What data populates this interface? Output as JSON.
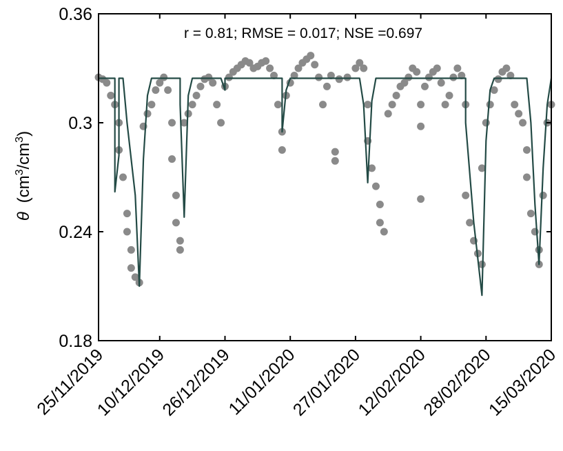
{
  "chart_data": {
    "type": "scatter",
    "title": "",
    "annotation": "r = 0.81; RMSE = 0.017; NSE =0.697",
    "ylabel": {
      "symbol": "θ",
      "text": "(cm",
      "sup1": "3",
      "mid": "/cm",
      "sup2": "3",
      "close": ")"
    },
    "xlabel": "",
    "ylim": [
      0.18,
      0.36
    ],
    "yticks": [
      0.18,
      0.24,
      0.3,
      0.36
    ],
    "ytick_labels": [
      "0.18",
      "0.24",
      "0.3",
      "0.36"
    ],
    "xlim": [
      "2019-11-25",
      "2020-03-15"
    ],
    "xticks": [
      "2019-11-25",
      "2019-12-10",
      "2019-12-26",
      "2020-01-11",
      "2020-01-27",
      "2020-02-12",
      "2020-02-28",
      "2020-03-15"
    ],
    "xtick_labels": [
      "25/11/2019",
      "10/12/2019",
      "26/12/2019",
      "11/01/2020",
      "27/01/2020",
      "12/02/2020",
      "28/02/2020",
      "15/03/2020"
    ],
    "grid": false,
    "colors": {
      "observed": "#8a8a8a",
      "simulated": "#234a45",
      "axis": "#000000"
    },
    "series": [
      {
        "kind": "scatter",
        "points": [
          [
            "2019-11-25",
            0.325
          ],
          [
            "2019-11-26",
            0.324
          ],
          [
            "2019-11-27",
            0.322
          ],
          [
            "2019-11-28",
            0.315
          ],
          [
            "2019-11-29",
            0.31
          ],
          [
            "2019-11-30",
            0.3
          ],
          [
            "2019-11-30",
            0.285
          ],
          [
            "2019-12-01",
            0.27
          ],
          [
            "2019-12-02",
            0.25
          ],
          [
            "2019-12-02",
            0.24
          ],
          [
            "2019-12-03",
            0.23
          ],
          [
            "2019-12-03",
            0.22
          ],
          [
            "2019-12-04",
            0.215
          ],
          [
            "2019-12-05",
            0.212
          ],
          [
            "2019-12-06",
            0.298
          ],
          [
            "2019-12-07",
            0.305
          ],
          [
            "2019-12-08",
            0.31
          ],
          [
            "2019-12-09",
            0.318
          ],
          [
            "2019-12-10",
            0.322
          ],
          [
            "2019-12-11",
            0.325
          ],
          [
            "2019-12-12",
            0.318
          ],
          [
            "2019-12-13",
            0.3
          ],
          [
            "2019-12-13",
            0.28
          ],
          [
            "2019-12-14",
            0.26
          ],
          [
            "2019-12-14",
            0.245
          ],
          [
            "2019-12-15",
            0.235
          ],
          [
            "2019-12-15",
            0.23
          ],
          [
            "2019-12-16",
            0.3
          ],
          [
            "2019-12-17",
            0.305
          ],
          [
            "2019-12-18",
            0.31
          ],
          [
            "2019-12-19",
            0.315
          ],
          [
            "2019-12-20",
            0.32
          ],
          [
            "2019-12-21",
            0.324
          ],
          [
            "2019-12-22",
            0.325
          ],
          [
            "2019-12-23",
            0.322
          ],
          [
            "2019-12-24",
            0.31
          ],
          [
            "2019-12-25",
            0.3
          ],
          [
            "2019-12-26",
            0.32
          ],
          [
            "2019-12-27",
            0.325
          ],
          [
            "2019-12-28",
            0.328
          ],
          [
            "2019-12-29",
            0.33
          ],
          [
            "2019-12-30",
            0.332
          ],
          [
            "2019-12-31",
            0.334
          ],
          [
            "2020-01-01",
            0.333
          ],
          [
            "2020-01-02",
            0.33
          ],
          [
            "2020-01-03",
            0.331
          ],
          [
            "2020-01-04",
            0.333
          ],
          [
            "2020-01-05",
            0.334
          ],
          [
            "2020-01-06",
            0.33
          ],
          [
            "2020-01-07",
            0.326
          ],
          [
            "2020-01-08",
            0.31
          ],
          [
            "2020-01-09",
            0.295
          ],
          [
            "2020-01-09",
            0.285
          ],
          [
            "2020-01-10",
            0.315
          ],
          [
            "2020-01-11",
            0.322
          ],
          [
            "2020-01-12",
            0.326
          ],
          [
            "2020-01-13",
            0.33
          ],
          [
            "2020-01-14",
            0.333
          ],
          [
            "2020-01-15",
            0.335
          ],
          [
            "2020-01-16",
            0.337
          ],
          [
            "2020-01-17",
            0.332
          ],
          [
            "2020-01-18",
            0.325
          ],
          [
            "2020-01-19",
            0.31
          ],
          [
            "2020-01-20",
            0.32
          ],
          [
            "2020-01-21",
            0.326
          ],
          [
            "2020-01-22",
            0.284
          ],
          [
            "2020-01-22",
            0.279
          ],
          [
            "2020-01-23",
            0.324
          ],
          [
            "2020-01-25",
            0.325
          ],
          [
            "2020-01-27",
            0.33
          ],
          [
            "2020-01-28",
            0.333
          ],
          [
            "2020-01-29",
            0.33
          ],
          [
            "2020-01-30",
            0.31
          ],
          [
            "2020-01-30",
            0.29
          ],
          [
            "2020-01-31",
            0.275
          ],
          [
            "2020-02-01",
            0.265
          ],
          [
            "2020-02-02",
            0.255
          ],
          [
            "2020-02-02",
            0.245
          ],
          [
            "2020-02-03",
            0.24
          ],
          [
            "2020-02-04",
            0.305
          ],
          [
            "2020-02-05",
            0.31
          ],
          [
            "2020-02-06",
            0.315
          ],
          [
            "2020-02-07",
            0.32
          ],
          [
            "2020-02-08",
            0.322
          ],
          [
            "2020-02-09",
            0.325
          ],
          [
            "2020-02-10",
            0.33
          ],
          [
            "2020-02-11",
            0.328
          ],
          [
            "2020-02-12",
            0.31
          ],
          [
            "2020-02-12",
            0.298
          ],
          [
            "2020-02-12",
            0.258
          ],
          [
            "2020-02-13",
            0.32
          ],
          [
            "2020-02-14",
            0.325
          ],
          [
            "2020-02-15",
            0.328
          ],
          [
            "2020-02-16",
            0.33
          ],
          [
            "2020-02-17",
            0.322
          ],
          [
            "2020-02-18",
            0.31
          ],
          [
            "2020-02-19",
            0.315
          ],
          [
            "2020-02-20",
            0.325
          ],
          [
            "2020-02-21",
            0.33
          ],
          [
            "2020-02-22",
            0.326
          ],
          [
            "2020-02-23",
            0.31
          ],
          [
            "2020-02-23",
            0.26
          ],
          [
            "2020-02-24",
            0.245
          ],
          [
            "2020-02-25",
            0.235
          ],
          [
            "2020-02-26",
            0.228
          ],
          [
            "2020-02-27",
            0.222
          ],
          [
            "2020-02-27",
            0.275
          ],
          [
            "2020-02-28",
            0.3
          ],
          [
            "2020-02-29",
            0.31
          ],
          [
            "2020-03-01",
            0.318
          ],
          [
            "2020-03-02",
            0.324
          ],
          [
            "2020-03-03",
            0.328
          ],
          [
            "2020-03-04",
            0.33
          ],
          [
            "2020-03-05",
            0.326
          ],
          [
            "2020-03-06",
            0.31
          ],
          [
            "2020-03-07",
            0.305
          ],
          [
            "2020-03-08",
            0.3
          ],
          [
            "2020-03-09",
            0.285
          ],
          [
            "2020-03-09",
            0.27
          ],
          [
            "2020-03-10",
            0.25
          ],
          [
            "2020-03-11",
            0.24
          ],
          [
            "2020-03-12",
            0.23
          ],
          [
            "2020-03-12",
            0.222
          ],
          [
            "2020-03-13",
            0.26
          ],
          [
            "2020-03-14",
            0.3
          ],
          [
            "2020-03-15",
            0.31
          ]
        ]
      },
      {
        "kind": "line",
        "points": [
          [
            "2019-11-25",
            0.3245
          ],
          [
            "2019-11-28",
            0.3245
          ],
          [
            "2019-11-28",
            0.3245
          ],
          [
            "2019-11-29",
            0.3245
          ],
          [
            "2019-11-29",
            0.262
          ],
          [
            "2019-11-30",
            0.282
          ],
          [
            "2019-11-30",
            0.3245
          ],
          [
            "2019-12-01",
            0.3245
          ],
          [
            "2019-12-02",
            0.3
          ],
          [
            "2019-12-04",
            0.26
          ],
          [
            "2019-12-05",
            0.21
          ],
          [
            "2019-12-06",
            0.28
          ],
          [
            "2019-12-07",
            0.315
          ],
          [
            "2019-12-08",
            0.3245
          ],
          [
            "2019-12-15",
            0.3245
          ],
          [
            "2019-12-15",
            0.31
          ],
          [
            "2019-12-16",
            0.248
          ],
          [
            "2019-12-17",
            0.315
          ],
          [
            "2019-12-18",
            0.3245
          ],
          [
            "2019-12-25",
            0.3245
          ],
          [
            "2019-12-26",
            0.318
          ],
          [
            "2019-12-26",
            0.3245
          ],
          [
            "2020-01-09",
            0.3245
          ],
          [
            "2020-01-09",
            0.295
          ],
          [
            "2020-01-10",
            0.318
          ],
          [
            "2020-01-11",
            0.3245
          ],
          [
            "2020-01-28",
            0.3245
          ],
          [
            "2020-01-29",
            0.31
          ],
          [
            "2020-01-30",
            0.267
          ],
          [
            "2020-01-31",
            0.312
          ],
          [
            "2020-02-01",
            0.3245
          ],
          [
            "2020-02-22",
            0.3245
          ],
          [
            "2020-02-23",
            0.3245
          ],
          [
            "2020-02-23",
            0.3
          ],
          [
            "2020-02-25",
            0.245
          ],
          [
            "2020-02-27",
            0.205
          ],
          [
            "2020-02-28",
            0.29
          ],
          [
            "2020-02-29",
            0.318
          ],
          [
            "2020-03-01",
            0.3245
          ],
          [
            "2020-03-09",
            0.3245
          ],
          [
            "2020-03-10",
            0.3
          ],
          [
            "2020-03-11",
            0.255
          ],
          [
            "2020-03-12",
            0.222
          ],
          [
            "2020-03-13",
            0.275
          ],
          [
            "2020-03-14",
            0.31
          ],
          [
            "2020-03-15",
            0.3245
          ]
        ]
      }
    ]
  }
}
